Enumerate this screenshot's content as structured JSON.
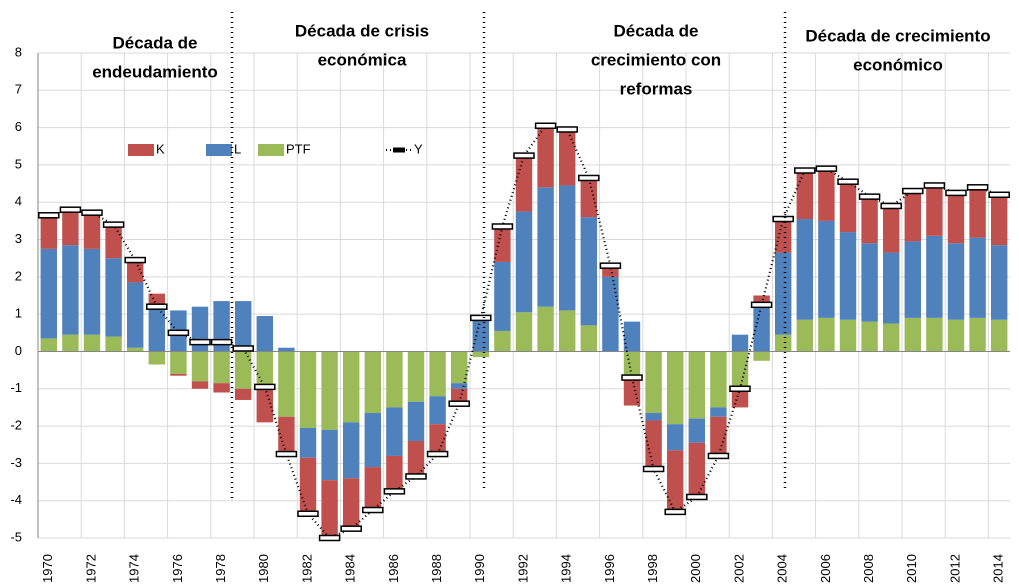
{
  "chart_data": {
    "type": "bar",
    "categories": [
      "1970",
      null,
      "1972",
      null,
      "1974",
      null,
      "1976",
      null,
      "1978",
      null,
      "1980",
      null,
      "1982",
      null,
      "1984",
      null,
      "1986",
      null,
      "1988",
      null,
      "1990",
      null,
      "1992",
      null,
      "1994",
      null,
      "1996",
      null,
      "1998",
      null,
      "2000",
      null,
      "2002",
      null,
      "2004",
      null,
      "2006",
      null,
      "2008",
      null,
      "2010",
      null,
      "2012",
      null,
      "2014"
    ],
    "series": [
      {
        "name": "K",
        "color": "#c0504d",
        "values": [
          0.9,
          0.95,
          0.95,
          0.9,
          0.6,
          0.35,
          -0.05,
          -0.2,
          -0.25,
          -0.3,
          -0.9,
          -1.0,
          -1.5,
          -1.55,
          -1.35,
          -1.15,
          -0.95,
          -0.95,
          -0.8,
          -0.4,
          0.1,
          0.95,
          1.5,
          1.6,
          1.5,
          1.05,
          0.3,
          -0.75,
          -1.3,
          -1.65,
          -1.45,
          -1.05,
          -0.45,
          0.25,
          0.9,
          1.3,
          1.4,
          1.35,
          1.25,
          1.25,
          1.35,
          1.35,
          1.35,
          1.35,
          1.35
        ]
      },
      {
        "name": "L",
        "color": "#4f81bd",
        "values": [
          2.4,
          2.4,
          2.3,
          2.1,
          1.75,
          1.2,
          1.1,
          1.2,
          1.35,
          1.35,
          0.95,
          0.1,
          -0.8,
          -1.35,
          -1.5,
          -1.45,
          -1.3,
          -1.05,
          -0.75,
          -0.15,
          0.85,
          1.85,
          2.7,
          3.2,
          3.35,
          2.9,
          2.0,
          0.8,
          -0.2,
          -0.7,
          -0.65,
          -0.25,
          0.45,
          1.25,
          2.2,
          2.7,
          2.6,
          2.35,
          2.1,
          1.9,
          2.05,
          2.2,
          2.05,
          2.15,
          2.0
        ]
      },
      {
        "name": "PTF",
        "color": "#9bbb59",
        "values": [
          0.35,
          0.45,
          0.45,
          0.4,
          0.1,
          -0.35,
          -0.6,
          -0.8,
          -0.85,
          -1.0,
          -1.0,
          -1.75,
          -2.05,
          -2.1,
          -1.9,
          -1.65,
          -1.5,
          -1.35,
          -1.2,
          -0.85,
          -0.15,
          0.55,
          1.05,
          1.2,
          1.1,
          0.7,
          0,
          -0.7,
          -1.65,
          -1.95,
          -1.8,
          -1.5,
          -1.05,
          -0.25,
          0.45,
          0.85,
          0.9,
          0.85,
          0.8,
          0.75,
          0.9,
          0.9,
          0.85,
          0.9,
          0.85
        ]
      },
      {
        "name": "Y",
        "color": "#000000",
        "type": "line",
        "values": [
          3.65,
          3.8,
          3.72,
          3.4,
          2.45,
          1.2,
          0.5,
          0.25,
          0.25,
          0.08,
          -0.95,
          -2.75,
          -4.35,
          -5.0,
          -4.75,
          -4.25,
          -3.75,
          -3.35,
          -2.75,
          -1.4,
          0.9,
          3.35,
          5.25,
          6.05,
          5.95,
          4.65,
          2.3,
          -0.7,
          -3.15,
          -4.3,
          -3.9,
          -2.8,
          -1.0,
          1.25,
          3.55,
          4.85,
          4.9,
          4.55,
          4.15,
          3.9,
          4.3,
          4.45,
          4.25,
          4.4,
          4.2
        ]
      }
    ],
    "annotations": [
      [
        "Década de",
        "endeudamiento"
      ],
      [
        "Década de crisis",
        "económica"
      ],
      [
        "Década de",
        "crecimiento con",
        "reformas"
      ],
      [
        "Década de crecimiento",
        "económico"
      ]
    ],
    "ylim": [
      -5,
      8
    ],
    "yticks": [
      -5,
      -4,
      -3,
      -2,
      -1,
      0,
      1,
      2,
      3,
      4,
      5,
      6,
      7,
      8
    ],
    "grid": true
  }
}
